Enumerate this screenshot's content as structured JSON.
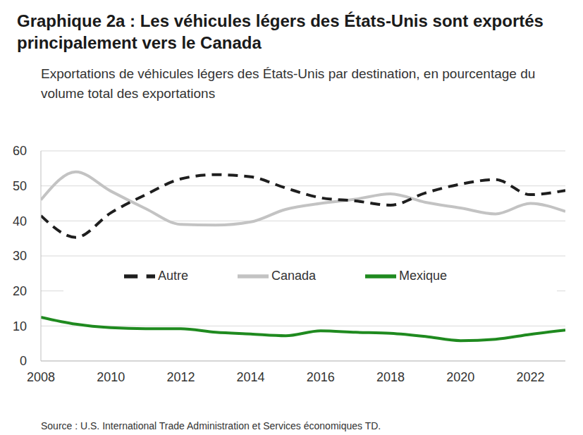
{
  "chart_data": {
    "type": "line",
    "title": "Graphique 2a : Les véhicules légers des États-Unis sont exportés principalement vers le Canada",
    "subtitle": "Exportations de véhicules légers des États-Unis par destination, en pourcentage du volume total des exportations",
    "source": "Source : U.S. International Trade Administration et Services économiques TD.",
    "x": [
      2008,
      2009,
      2010,
      2011,
      2012,
      2013,
      2014,
      2015,
      2016,
      2017,
      2018,
      2019,
      2020,
      2021,
      2022,
      2023
    ],
    "xlim": [
      2008,
      2023
    ],
    "xticks": [
      2008,
      2010,
      2012,
      2014,
      2016,
      2018,
      2020,
      2022
    ],
    "ylim": [
      0,
      60
    ],
    "yticks": [
      0,
      10,
      20,
      30,
      40,
      50,
      60
    ],
    "grid": true,
    "legend": "center",
    "series": [
      {
        "name": "Canada",
        "color": "#c3c3c3",
        "line_style": "solid",
        "values": [
          46,
          54,
          48.5,
          43.5,
          39,
          38.8,
          39.7,
          43.3,
          45,
          46.2,
          47.7,
          45.3,
          43.7,
          42,
          45,
          42.7
        ]
      },
      {
        "name": "Mexique",
        "color": "#1f8a1f",
        "line_style": "solid",
        "values": [
          12.5,
          10.5,
          9.5,
          9.2,
          9.2,
          8.2,
          7.7,
          7.2,
          8.6,
          8.2,
          7.9,
          7,
          5.8,
          6.2,
          7.6,
          8.8
        ]
      },
      {
        "name": "Autre",
        "color": "#1e1e1e",
        "line_style": "dashed",
        "values": [
          41.5,
          35.3,
          42.3,
          47.5,
          52,
          53.2,
          52.6,
          49.4,
          46.6,
          45.7,
          44.5,
          48,
          50.5,
          51.8,
          47.5,
          48.7
        ]
      }
    ]
  }
}
